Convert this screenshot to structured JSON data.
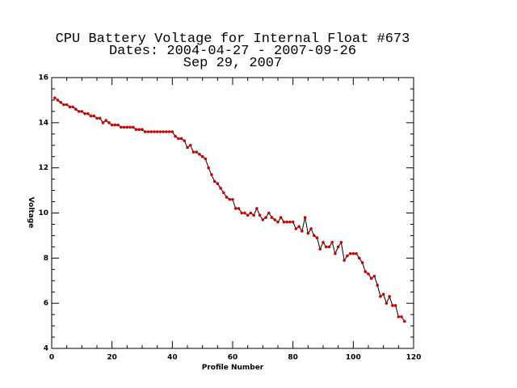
{
  "chart_data": {
    "type": "line",
    "title": [
      "CPU Battery Voltage for Internal Float #673",
      "Dates:  2004-04-27 -  2007-09-26",
      "Sep 29, 2007"
    ],
    "x_label": "Profile Number",
    "y_label": "Voltage",
    "xlim": [
      0,
      120
    ],
    "xticks": [
      0,
      20,
      40,
      60,
      80,
      100,
      120
    ],
    "ylim": [
      4,
      16
    ],
    "yticks": [
      4,
      6,
      8,
      10,
      12,
      14,
      16
    ],
    "x": [
      1,
      2,
      3,
      4,
      5,
      6,
      7,
      8,
      9,
      10,
      11,
      12,
      13,
      14,
      15,
      16,
      17,
      18,
      19,
      20,
      21,
      22,
      23,
      24,
      25,
      26,
      27,
      28,
      29,
      30,
      31,
      32,
      33,
      34,
      35,
      36,
      37,
      38,
      39,
      40,
      41,
      42,
      43,
      44,
      45,
      46,
      47,
      48,
      49,
      50,
      51,
      52,
      53,
      54,
      55,
      56,
      57,
      58,
      59,
      60,
      61,
      62,
      63,
      64,
      65,
      66,
      67,
      68,
      69,
      70,
      71,
      72,
      73,
      74,
      75,
      76,
      77,
      78,
      79,
      80,
      81,
      82,
      83,
      84,
      85,
      86,
      87,
      88,
      89,
      90,
      91,
      92,
      93,
      94,
      95,
      96,
      97,
      98,
      99,
      100,
      101,
      102,
      103,
      104,
      105,
      106,
      107,
      108,
      109,
      110,
      111,
      112,
      113,
      114,
      115,
      116,
      117
    ],
    "series": [
      {
        "line_color": "#000000",
        "color": "#cc0000",
        "values": [
          15.1,
          15.0,
          14.9,
          14.8,
          14.8,
          14.7,
          14.7,
          14.6,
          14.5,
          14.5,
          14.4,
          14.4,
          14.3,
          14.3,
          14.2,
          14.2,
          14.0,
          14.1,
          14.0,
          13.9,
          13.9,
          13.9,
          13.8,
          13.8,
          13.8,
          13.8,
          13.8,
          13.7,
          13.7,
          13.7,
          13.6,
          13.6,
          13.6,
          13.6,
          13.6,
          13.6,
          13.6,
          13.6,
          13.6,
          13.6,
          13.4,
          13.3,
          13.3,
          13.2,
          12.9,
          13.0,
          12.7,
          12.7,
          12.6,
          12.5,
          12.4,
          12.0,
          11.7,
          11.4,
          11.3,
          11.1,
          10.9,
          10.7,
          10.6,
          10.6,
          10.2,
          10.2,
          10.0,
          10.0,
          9.9,
          10.0,
          9.9,
          10.2,
          9.9,
          9.7,
          9.8,
          10.0,
          9.8,
          9.7,
          9.6,
          9.8,
          9.6,
          9.6,
          9.6,
          9.6,
          9.3,
          9.4,
          9.2,
          9.8,
          9.1,
          9.3,
          9.0,
          8.9,
          8.4,
          8.7,
          8.5,
          8.5,
          8.7,
          8.2,
          8.5,
          8.7,
          7.9,
          8.1,
          8.2,
          8.2,
          8.2,
          8.0,
          7.8,
          7.4,
          7.3,
          7.1,
          7.2,
          6.8,
          6.3,
          6.4,
          6.0,
          6.3,
          5.9,
          5.9,
          5.4,
          5.4,
          5.2
        ]
      }
    ]
  }
}
